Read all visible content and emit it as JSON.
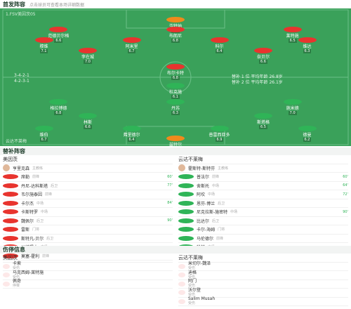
{
  "header": {
    "title": "首发阵容",
    "subtitle": "点击球员可查看本场详细数据"
  },
  "pitch": {
    "home": {
      "name": "1.FSV美因茨05",
      "formation": "3-4-2-1",
      "info": "替补 1 位 平均年龄 26.8岁",
      "lines": [
        [
          {
            "name": "岑特纳",
            "rating": "6.9"
          }
        ],
        [
          {
            "name": "范德贝尔格",
            "rating": "6.6"
          },
          {
            "name": "布朗尼",
            "rating": "6.8"
          },
          {
            "name": "莱特施",
            "rating": "6.5"
          }
        ],
        [
          {
            "name": "穆维",
            "rating": "7.1"
          },
          {
            "name": "阿米里",
            "rating": "6.7"
          },
          {
            "name": "科尔",
            "rating": "6.4"
          },
          {
            "name": "维达",
            "rating": "6.3"
          }
        ],
        [
          {
            "name": "李在城",
            "rating": "7.0"
          },
          {
            "name": "奈贝尔",
            "rating": "6.6"
          }
        ],
        [
          {
            "name": "布尔卡特",
            "rating": "6.8"
          }
        ]
      ]
    },
    "away": {
      "name": "云达不莱梅",
      "formation": "4-2-3-1",
      "info": "替补 2 位 平均年龄 26.1岁",
      "lines": [
        [
          {
            "name": "兹特尔",
            "rating": "6.5"
          }
        ],
        [
          {
            "name": "维伯",
            "rating": "6.7"
          },
          {
            "name": "弗里德尔",
            "rating": "6.4"
          },
          {
            "name": "普雷西亚多",
            "rating": "6.9"
          },
          {
            "name": "德曼",
            "rating": "6.2"
          }
        ],
        [
          {
            "name": "林斯",
            "rating": "6.6"
          },
          {
            "name": "斯塔格",
            "rating": "6.5"
          }
        ],
        [
          {
            "name": "格拉博德",
            "rating": "6.8"
          },
          {
            "name": "丹苏",
            "rating": "6.3"
          },
          {
            "name": "施米德",
            "rating": "7.0"
          }
        ],
        [
          {
            "name": "杜克施",
            "rating": "6.1"
          }
        ]
      ]
    }
  },
  "subs": {
    "title": "替补阵容",
    "home": {
      "team": "美因茨",
      "coach": "亨里克森",
      "coach_role": "主教练",
      "players": [
        {
          "name": "席勒",
          "pos": "前锋",
          "event": "60'"
        },
        {
          "name": "丹尼-达科斯塔",
          "pos": "后卫",
          "event": "77'"
        },
        {
          "name": "韦尔施泰因",
          "pos": "前锋"
        },
        {
          "name": "卡尔杰",
          "pos": "中场",
          "event": "84'"
        },
        {
          "name": "卡斯特罗",
          "pos": "中场"
        },
        {
          "name": "魏佩尔",
          "pos": "后卫",
          "event": "90'"
        },
        {
          "name": "雷斯",
          "pos": "门将"
        },
        {
          "name": "斯特凡-贝尔",
          "pos": "后卫"
        },
        {
          "name": "川崎颯太",
          "pos": "中场"
        },
        {
          "name": "莫塞-霍利",
          "pos": "前锋"
        }
      ]
    },
    "away": {
      "team": "云达不莱梅",
      "coach": "霍斯特-斯特芬",
      "coach_role": "主教练",
      "players": [
        {
          "name": "普法尔",
          "pos": "前锋",
          "event": "60'"
        },
        {
          "name": "舍斯托",
          "pos": "中场",
          "event": "64'"
        },
        {
          "name": "阿坎",
          "pos": "中场",
          "event": "72'"
        },
        {
          "name": "恩芬-博兰",
          "pos": "后卫"
        },
        {
          "name": "尼克拉斯-施密特",
          "pos": "中场",
          "event": "90'"
        },
        {
          "name": "比达尔",
          "pos": "后卫"
        },
        {
          "name": "卡尔-海姆",
          "pos": "门将"
        },
        {
          "name": "马伦德尔",
          "pos": "前锋"
        },
        {
          "name": "科赫",
          "pos": "中场"
        }
      ]
    }
  },
  "injuries": {
    "title": "伤停信息",
    "home": {
      "team": "美因茨",
      "players": [
        {
          "name": "卡索",
          "status": "受伤"
        },
        {
          "name": "马克西姆-莱特施",
          "status": "受伤"
        },
        {
          "name": "佩奇",
          "status": "停赛"
        }
      ]
    },
    "away": {
      "team": "云达不莱梅",
      "players": [
        {
          "name": "米切尔-魏泽",
          "status": "受伤"
        },
        {
          "name": "迪格",
          "status": "受伤"
        },
        {
          "name": "阿门",
          "status": "受伤"
        },
        {
          "name": "沃尔登",
          "status": "受伤"
        },
        {
          "name": "Salim Musah",
          "status": "受伤"
        }
      ]
    }
  }
}
